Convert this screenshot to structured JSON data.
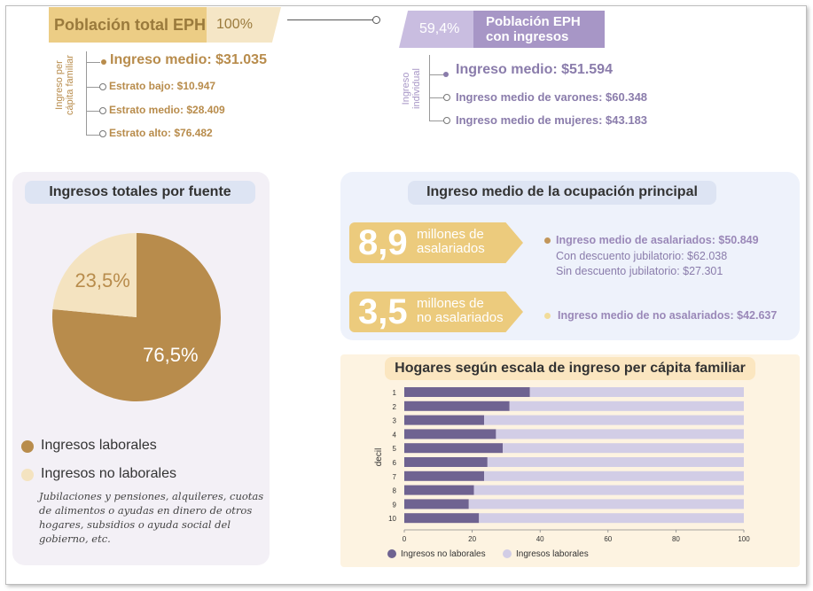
{
  "top_left": {
    "title": "Población total EPH",
    "percent": "100%",
    "axis_label": "Ingreso per\ncápita familiar",
    "main_item": "Ingreso medio: $31.035",
    "items": [
      "Estrato bajo: $10.947",
      "Estrato medio: $28.409",
      "Estrato alto: $76.482"
    ]
  },
  "top_right": {
    "title": "Población EPH\ncon ingresos",
    "percent": "59,4%",
    "axis_label": "Ingreso\nindividual",
    "main_item": "Ingreso medio: $51.594",
    "items": [
      "Ingreso medio de varones: $60.348",
      "Ingreso medio de mujeres: $43.183"
    ]
  },
  "colors": {
    "gold": "#b88c4c",
    "light_gold": "#f4e3c0",
    "purple_dark": "#6f6391",
    "purple_light": "#d2cde6"
  },
  "income_sources": {
    "title": "Ingresos totales por fuente",
    "legend_laborales": "Ingresos laborales",
    "legend_no_laborales": "Ingresos no laborales",
    "note": "Jubilaciones y pensiones, alquileres, cuotas de alimentos o ayudas en dinero de otros hogares, subsidios o ayuda social del gobierno, etc."
  },
  "occupation": {
    "title": "Ingreso medio de la ocupación principal",
    "asalariados_num": "8,9",
    "asalariados_label": "millones de\nasalariados",
    "asalariados_mean": "Ingreso medio de asalariados: $50.849",
    "con_descuento": "Con descuento jubilatorio: $62.038",
    "sin_descuento": "Sin descuento jubilatorio: $27.301",
    "no_asalariados_num": "3,5",
    "no_asalariados_label": "millones de\nno asalariados",
    "no_asalariados_mean": "Ingreso medio de no asalariados: $42.637"
  },
  "chart_data": [
    {
      "type": "pie",
      "title": "Ingresos totales por fuente",
      "categories": [
        "Ingresos laborales",
        "Ingresos no laborales"
      ],
      "values": [
        76.5,
        23.5
      ],
      "labels": [
        "76,5%",
        "23,5%"
      ]
    },
    {
      "type": "bar",
      "orientation": "horizontal",
      "stacked": true,
      "title": "Hogares según escala de ingreso per cápita familiar",
      "ylabel": "decil",
      "categories": [
        "1",
        "2",
        "3",
        "4",
        "5",
        "6",
        "7",
        "8",
        "9",
        "10"
      ],
      "series": [
        {
          "name": "Ingresos no laborales",
          "values": [
            37,
            31,
            23.5,
            27,
            29,
            24.5,
            23.5,
            20.5,
            19,
            22
          ]
        },
        {
          "name": "Ingresos laborales",
          "values": [
            63,
            69,
            76.5,
            73,
            71,
            75.5,
            76.5,
            79.5,
            81,
            78
          ]
        }
      ],
      "xlim": [
        0,
        100
      ],
      "xticks": [
        "0",
        "20",
        "40",
        "60",
        "80",
        "100"
      ]
    }
  ]
}
